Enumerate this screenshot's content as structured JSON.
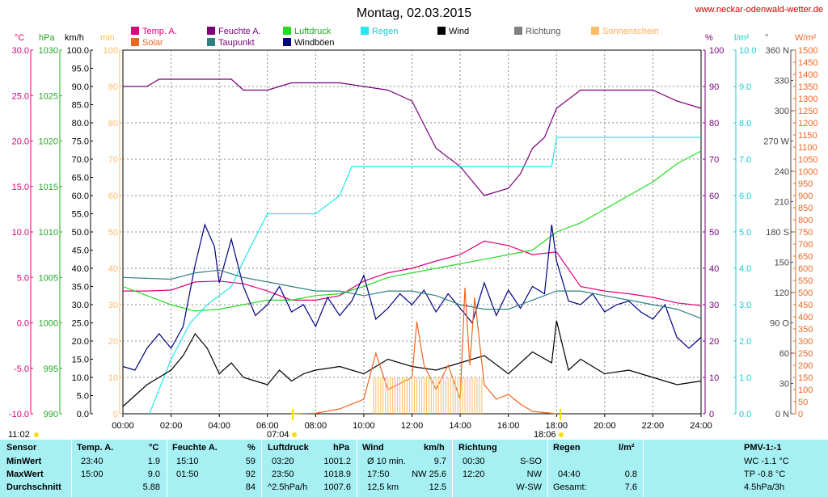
{
  "title": "Montag, 02.03.2015",
  "site": "www.neckar-odenwald-wetter.de",
  "legend": [
    {
      "label": "Temp. A.",
      "color": "#e0007a"
    },
    {
      "label": "Feuchte A.",
      "color": "#7a007a"
    },
    {
      "label": "Luftdruck",
      "color": "#22dd22"
    },
    {
      "label": "Regen",
      "color": "#22e8f0"
    },
    {
      "label": "Wind",
      "color": "#000000"
    },
    {
      "label": "Richtung",
      "color": "#808080"
    },
    {
      "label": "Sonnenschein",
      "color": "#ffbb66"
    },
    {
      "label": "Solar",
      "color": "#ee6622"
    },
    {
      "label": "Taupunkt",
      "color": "#2f7f7f"
    },
    {
      "label": "Windböen",
      "color": "#000080"
    }
  ],
  "units": {
    "temp": "°C",
    "pressure": "hPa",
    "wind": "km/h",
    "sun": "min",
    "humidity": "%",
    "rain": "l/m²",
    "direction": "°",
    "solar": "W/m²"
  },
  "markers": {
    "sunrise": "07:04",
    "sunset": "18:06",
    "first": "11:02"
  },
  "axes": {
    "temp": [
      "30.0",
      "25.0",
      "20.0",
      "15.0",
      "10.0",
      "5.0",
      "0.0",
      "-5.0",
      "-10.0"
    ],
    "pressure": [
      "1030",
      "1025",
      "1020",
      "1015",
      "1010",
      "1005",
      "1000",
      "995",
      "990"
    ],
    "wind": [
      "100.0",
      "95.0",
      "90.0",
      "85.0",
      "80.0",
      "75.0",
      "70.0",
      "65.0",
      "60.0",
      "55.0",
      "50.0",
      "45.0",
      "40.0",
      "35.0",
      "30.0",
      "25.0",
      "20.0",
      "15.0",
      "10.0",
      "5.0",
      "0.0"
    ],
    "sun": [
      "100",
      "90",
      "80",
      "70",
      "60",
      "50",
      "40",
      "30",
      "20",
      "10",
      "0"
    ],
    "humidity": [
      "100",
      "90",
      "80",
      "70",
      "60",
      "50",
      "40",
      "30",
      "20",
      "10",
      "0"
    ],
    "rain": [
      "10.0",
      "9.0",
      "8.0",
      "7.0",
      "6.0",
      "5.0",
      "4.0",
      "3.0",
      "2.0",
      "1.0",
      "0.0"
    ],
    "direction": [
      "360 N",
      "330",
      "300",
      "270 W",
      "240",
      "210",
      "180 S",
      "150",
      "120",
      "90 O",
      "60",
      "30",
      "0 N"
    ],
    "solar": [
      "1500",
      "1450",
      "1400",
      "1350",
      "1300",
      "1250",
      "1200",
      "1150",
      "1100",
      "1050",
      "1000",
      "950",
      "900",
      "850",
      "800",
      "750",
      "700",
      "650",
      "600",
      "550",
      "500",
      "450",
      "400",
      "350",
      "300",
      "250",
      "200",
      "150",
      "100",
      "50",
      "0"
    ],
    "time": [
      "00:00",
      "02:00",
      "04:00",
      "06:00",
      "08:00",
      "10:00",
      "12:00",
      "14:00",
      "16:00",
      "18:00",
      "20:00",
      "22:00",
      "24:00"
    ]
  },
  "stats": {
    "headers": {
      "sensor": "Sensor",
      "temp": "Temp. A.",
      "temp_unit": "°C",
      "hum": "Feuchte A.",
      "hum_unit": "%",
      "press": "Luftdruck",
      "press_unit": "hPa",
      "wind": "Wind",
      "wind_unit": "km/h",
      "dir": "Richtung",
      "rain": "Regen",
      "rain_unit": "l/m²",
      "pmv": "PMV-1:-1"
    },
    "min": {
      "label": "MinWert",
      "temp_time": "23:40",
      "temp": "1.9",
      "hum_time": "15:10",
      "hum": "59",
      "press_time": "03:20",
      "press": "1001.2",
      "wind_label": "Ø 10 min.",
      "wind": "9.7",
      "dir_time": "00:30",
      "dir": "S-SO",
      "pmv": "WC -1.1 °C"
    },
    "max": {
      "label": "MaxWert",
      "temp_time": "15:00",
      "temp": "9.0",
      "hum_time": "01:50",
      "hum": "92",
      "press_time": "23:50",
      "press": "1018.9",
      "wind_time": "17:50",
      "wind_dir": "NW 25.6",
      "dir_time": "12:20",
      "dir": "NW",
      "rain_time": "04:40",
      "rain": "0.8",
      "pmv": "TP -0.8 °C"
    },
    "avg": {
      "label": "Durchschnitt",
      "temp": "5.88",
      "hum": "84",
      "press_trend": "^2.5hPa/h",
      "press": "1007.6",
      "wind_label": "12,5 km",
      "wind": "12.5",
      "dir": "W-SW",
      "rain_label": "Gesamt:",
      "rain": "7.6",
      "pmv": "4.5hPa/3h"
    }
  },
  "chart_data": {
    "type": "line",
    "title": "Montag, 02.03.2015",
    "xlabel": "",
    "ylabel": "",
    "xlim": [
      0,
      24
    ],
    "grid": true,
    "series": [
      {
        "name": "Temp. A.",
        "unit": "°C",
        "color": "#e0007a",
        "points": [
          [
            0,
            3.5
          ],
          [
            1,
            3.5
          ],
          [
            2,
            3.6
          ],
          [
            3,
            4.5
          ],
          [
            4,
            4.6
          ],
          [
            5,
            4.3
          ],
          [
            6,
            3.5
          ],
          [
            7,
            2.5
          ],
          [
            8,
            2.5
          ],
          [
            9,
            3.0
          ],
          [
            10,
            4.6
          ],
          [
            11,
            5.5
          ],
          [
            12,
            6.0
          ],
          [
            13,
            6.8
          ],
          [
            14,
            7.5
          ],
          [
            15,
            9.0
          ],
          [
            16,
            8.5
          ],
          [
            17,
            7.5
          ],
          [
            18,
            7.8
          ],
          [
            19,
            4.0
          ],
          [
            20,
            3.5
          ],
          [
            21,
            3.2
          ],
          [
            22,
            2.8
          ],
          [
            23,
            2.2
          ],
          [
            24,
            1.9
          ]
        ]
      },
      {
        "name": "Feuchte A.",
        "unit": "%",
        "color": "#7a007a",
        "points": [
          [
            0,
            90
          ],
          [
            1,
            90
          ],
          [
            1.5,
            92
          ],
          [
            3,
            92
          ],
          [
            4.5,
            92
          ],
          [
            5,
            89
          ],
          [
            6,
            89
          ],
          [
            7,
            91
          ],
          [
            9,
            91
          ],
          [
            10,
            90
          ],
          [
            11,
            89
          ],
          [
            12,
            86
          ],
          [
            13,
            73
          ],
          [
            14,
            68
          ],
          [
            14.5,
            64
          ],
          [
            15,
            60
          ],
          [
            16,
            62
          ],
          [
            16.5,
            66
          ],
          [
            17,
            73
          ],
          [
            17.5,
            76
          ],
          [
            18,
            84
          ],
          [
            19,
            89
          ],
          [
            21,
            89
          ],
          [
            22,
            89
          ],
          [
            23,
            86
          ],
          [
            24,
            84
          ]
        ]
      },
      {
        "name": "Luftdruck",
        "unit": "hPa",
        "color": "#22dd22",
        "points": [
          [
            0,
            1004.0
          ],
          [
            1,
            1003.0
          ],
          [
            2,
            1002.0
          ],
          [
            3,
            1001.3
          ],
          [
            4,
            1001.5
          ],
          [
            5,
            1002.0
          ],
          [
            6,
            1002.5
          ],
          [
            7,
            1002.5
          ],
          [
            8,
            1003.0
          ],
          [
            9,
            1003.2
          ],
          [
            10,
            1004.0
          ],
          [
            11,
            1005.0
          ],
          [
            12,
            1005.5
          ],
          [
            13,
            1006.0
          ],
          [
            14,
            1006.5
          ],
          [
            15,
            1007.0
          ],
          [
            16,
            1007.5
          ],
          [
            17,
            1008.0
          ],
          [
            18,
            1010.0
          ],
          [
            19,
            1011.0
          ],
          [
            20,
            1012.5
          ],
          [
            21,
            1014.0
          ],
          [
            22,
            1015.5
          ],
          [
            23,
            1017.5
          ],
          [
            24,
            1018.9
          ]
        ]
      },
      {
        "name": "Regen",
        "unit": "l/m²",
        "color": "#22e8f0",
        "points": [
          [
            1.1,
            0
          ],
          [
            2,
            1.5
          ],
          [
            2.8,
            2.5
          ],
          [
            3.5,
            3.0
          ],
          [
            4.5,
            3.5
          ],
          [
            5,
            4.2
          ],
          [
            6,
            5.5
          ],
          [
            7,
            5.5
          ],
          [
            8,
            5.5
          ],
          [
            9,
            6.0
          ],
          [
            9.5,
            6.8
          ],
          [
            10.5,
            6.8
          ],
          [
            12,
            6.8
          ],
          [
            15,
            6.8
          ],
          [
            17,
            6.8
          ],
          [
            17.8,
            6.8
          ],
          [
            18,
            7.6
          ],
          [
            24,
            7.6
          ]
        ]
      },
      {
        "name": "Wind",
        "unit": "km/h",
        "color": "#000000",
        "points": [
          [
            0,
            2
          ],
          [
            0.5,
            5
          ],
          [
            1,
            8
          ],
          [
            2,
            12
          ],
          [
            2.5,
            16
          ],
          [
            3,
            22
          ],
          [
            3.5,
            18
          ],
          [
            4,
            11
          ],
          [
            4.5,
            14
          ],
          [
            5,
            10
          ],
          [
            5.5,
            9
          ],
          [
            6,
            8
          ],
          [
            6.5,
            12
          ],
          [
            7,
            9
          ],
          [
            7.5,
            11
          ],
          [
            8,
            12
          ],
          [
            9,
            13
          ],
          [
            10,
            11
          ],
          [
            11,
            15
          ],
          [
            12,
            13
          ],
          [
            13,
            12
          ],
          [
            14,
            14
          ],
          [
            15,
            16
          ],
          [
            16,
            11
          ],
          [
            17,
            17
          ],
          [
            17.8,
            14
          ],
          [
            18,
            25.6
          ],
          [
            18.5,
            12
          ],
          [
            19,
            15
          ],
          [
            20,
            11
          ],
          [
            21,
            12
          ],
          [
            22,
            10
          ],
          [
            23,
            8
          ],
          [
            24,
            9
          ]
        ]
      },
      {
        "name": "Windböen",
        "unit": "km/h",
        "color": "#000080",
        "points": [
          [
            0,
            13
          ],
          [
            0.5,
            12
          ],
          [
            1,
            18
          ],
          [
            1.5,
            22
          ],
          [
            2,
            18
          ],
          [
            2.5,
            24
          ],
          [
            3,
            41
          ],
          [
            3.4,
            52
          ],
          [
            3.8,
            46
          ],
          [
            4,
            36
          ],
          [
            4.5,
            48
          ],
          [
            5,
            35
          ],
          [
            5.5,
            27
          ],
          [
            6,
            30
          ],
          [
            6.5,
            35
          ],
          [
            7,
            28
          ],
          [
            7.5,
            30
          ],
          [
            8,
            24
          ],
          [
            8.5,
            32
          ],
          [
            9,
            27
          ],
          [
            9.5,
            31
          ],
          [
            10,
            38
          ],
          [
            10.5,
            26
          ],
          [
            11,
            29
          ],
          [
            11.5,
            33
          ],
          [
            12,
            30
          ],
          [
            12.5,
            34
          ],
          [
            13,
            28
          ],
          [
            13.5,
            33
          ],
          [
            14,
            29
          ],
          [
            14.5,
            25
          ],
          [
            15,
            36
          ],
          [
            15.5,
            27
          ],
          [
            16,
            34
          ],
          [
            16.5,
            29
          ],
          [
            17,
            35
          ],
          [
            17.5,
            33
          ],
          [
            17.8,
            52
          ],
          [
            18,
            42
          ],
          [
            18.5,
            31
          ],
          [
            19,
            30
          ],
          [
            19.5,
            33
          ],
          [
            20,
            28
          ],
          [
            20.5,
            30
          ],
          [
            21,
            31
          ],
          [
            21.5,
            28
          ],
          [
            22,
            26
          ],
          [
            22.5,
            30
          ],
          [
            23,
            21
          ],
          [
            23.5,
            18
          ],
          [
            24,
            21
          ]
        ]
      },
      {
        "name": "Taupunkt",
        "unit": "°C",
        "color": "#2f7f7f",
        "points": [
          [
            0,
            5.0
          ],
          [
            2,
            4.8
          ],
          [
            3,
            5.5
          ],
          [
            4,
            5.8
          ],
          [
            5,
            5.0
          ],
          [
            6,
            4.5
          ],
          [
            7,
            4.0
          ],
          [
            8,
            3.5
          ],
          [
            9,
            3.5
          ],
          [
            10,
            3.0
          ],
          [
            11,
            3.5
          ],
          [
            12,
            3.5
          ],
          [
            13,
            3.0
          ],
          [
            14,
            2.0
          ],
          [
            15,
            1.5
          ],
          [
            16,
            1.5
          ],
          [
            17,
            2.5
          ],
          [
            18,
            3.5
          ],
          [
            19,
            3.5
          ],
          [
            20,
            3.0
          ],
          [
            21,
            2.5
          ],
          [
            22,
            2.0
          ],
          [
            23,
            1.5
          ],
          [
            24,
            0.5
          ]
        ]
      },
      {
        "name": "Solar",
        "unit": "W/m²",
        "color": "#ee6622",
        "points": [
          [
            7,
            0
          ],
          [
            8,
            2
          ],
          [
            9,
            20
          ],
          [
            10,
            60
          ],
          [
            10.5,
            250
          ],
          [
            11,
            100
          ],
          [
            12,
            150
          ],
          [
            12.2,
            380
          ],
          [
            12.5,
            200
          ],
          [
            13,
            100
          ],
          [
            13.5,
            200
          ],
          [
            14,
            60
          ],
          [
            14.2,
            520
          ],
          [
            14.4,
            200
          ],
          [
            14.6,
            480
          ],
          [
            14.8,
            300
          ],
          [
            15,
            120
          ],
          [
            15.5,
            60
          ],
          [
            16,
            80
          ],
          [
            16.5,
            40
          ],
          [
            17,
            10
          ],
          [
            18,
            0
          ]
        ]
      },
      {
        "name": "Sonnenschein",
        "unit": "min",
        "color": "#ffbb66",
        "points": [
          [
            10.4,
            10
          ],
          [
            14.9,
            10
          ]
        ]
      }
    ]
  }
}
